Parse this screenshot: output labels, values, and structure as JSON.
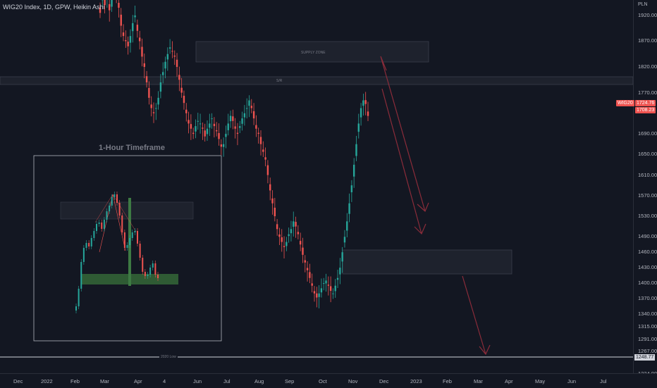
{
  "header": {
    "symbol_title": "WIG20 Index, 1D, GPW, Heikin Ashi"
  },
  "price_scale": {
    "currency": "PLN",
    "ticks": [
      "1920.00",
      "1870.00",
      "1820.00",
      "1770.00",
      "1690.00",
      "1650.00",
      "1610.00",
      "1570.00",
      "1530.00",
      "1490.00",
      "1460.00",
      "1430.00",
      "1400.00",
      "1370.00",
      "1340.00",
      "1315.00",
      "1291.00",
      "1267.00",
      "1224.00"
    ],
    "ticks_v": [
      1920,
      1870,
      1820,
      1770,
      1690,
      1650,
      1610,
      1570,
      1530,
      1490,
      1460,
      1430,
      1400,
      1370,
      1340,
      1315,
      1291,
      1267,
      1224
    ],
    "range": [
      1225,
      1950
    ]
  },
  "time_scale": {
    "labels": [
      "Dec",
      "2022",
      "Feb",
      "Mar",
      "Apr",
      "4",
      "Jun",
      "Jul",
      "Aug",
      "Sep",
      "Oct",
      "Nov",
      "Dec",
      "2023",
      "Feb",
      "Mar",
      "Apr",
      "May",
      "Jun",
      "Jul"
    ]
  },
  "tags": {
    "symbol": "WIG20",
    "last_price": "1724.76",
    "second_price": "1708.23",
    "low_level": "1248.77"
  },
  "annotations": {
    "supply_zone": "SUPPLY ZONE",
    "sr": "S/R",
    "low_2020": "2020 Low",
    "inset_title": "1-Hour Timeframe"
  },
  "colors": {
    "background": "#131722",
    "bull": "#26a69a",
    "bear": "#ef5350",
    "arrow": "#8b2c3a",
    "zone_fill": "#1e222d",
    "inset_green": "#2f5b34"
  },
  "chart_data": {
    "type": "candlestick",
    "title": "WIG20 Index, 1D, GPW, Heikin Ashi",
    "ylim": [
      1225,
      1950
    ],
    "series": [
      {
        "close": [
          1925,
          1980,
          1940,
          1960,
          1930,
          1950,
          1990,
          1960,
          1935,
          1900,
          1880,
          1870,
          1860,
          1880,
          1905,
          1920,
          1890,
          1870,
          1840,
          1820,
          1790,
          1760,
          1740,
          1730,
          1740,
          1760,
          1790,
          1810,
          1830,
          1845,
          1858,
          1850,
          1840,
          1820,
          1795,
          1770,
          1750,
          1730,
          1710,
          1700,
          1690,
          1705,
          1715,
          1710,
          1700,
          1685,
          1700,
          1710,
          1720,
          1705,
          1695,
          1680,
          1665,
          1670,
          1690,
          1710,
          1725,
          1715,
          1700,
          1690,
          1705,
          1720,
          1730,
          1740,
          1755,
          1740,
          1720,
          1700,
          1690,
          1670,
          1655,
          1640,
          1610,
          1580,
          1555,
          1530,
          1505,
          1490,
          1480,
          1470,
          1480,
          1495,
          1505,
          1520,
          1510,
          1495,
          1475,
          1455,
          1440,
          1425,
          1410,
          1395,
          1380,
          1372,
          1380,
          1390,
          1400,
          1405,
          1395,
          1385,
          1380,
          1395,
          1410,
          1430,
          1460,
          1490,
          1520,
          1555,
          1590,
          1630,
          1670,
          1710,
          1740,
          1755,
          1748,
          1724.76
        ]
      }
    ]
  }
}
